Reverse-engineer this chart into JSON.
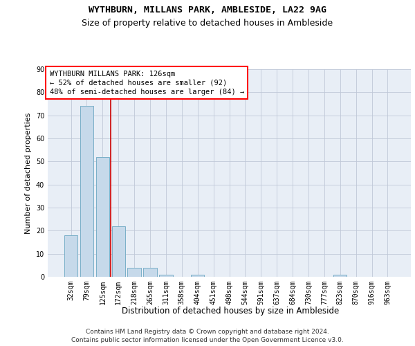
{
  "title1": "WYTHBURN, MILLANS PARK, AMBLESIDE, LA22 9AG",
  "title2": "Size of property relative to detached houses in Ambleside",
  "xlabel": "Distribution of detached houses by size in Ambleside",
  "ylabel": "Number of detached properties",
  "categories": [
    "32sqm",
    "79sqm",
    "125sqm",
    "172sqm",
    "218sqm",
    "265sqm",
    "311sqm",
    "358sqm",
    "404sqm",
    "451sqm",
    "498sqm",
    "544sqm",
    "591sqm",
    "637sqm",
    "684sqm",
    "730sqm",
    "777sqm",
    "823sqm",
    "870sqm",
    "916sqm",
    "963sqm"
  ],
  "values": [
    18,
    74,
    52,
    22,
    4,
    4,
    1,
    0,
    1,
    0,
    0,
    0,
    0,
    0,
    0,
    0,
    0,
    1,
    0,
    0,
    0
  ],
  "bar_color": "#c6d9ea",
  "bar_edge_color": "#7aafc8",
  "red_line_index": 2,
  "annotation_text": "WYTHBURN MILLANS PARK: 126sqm\n← 52% of detached houses are smaller (92)\n48% of semi-detached houses are larger (84) →",
  "annotation_box_color": "white",
  "annotation_box_edge_color": "red",
  "red_line_color": "#cc0000",
  "ylim": [
    0,
    90
  ],
  "yticks": [
    0,
    10,
    20,
    30,
    40,
    50,
    60,
    70,
    80,
    90
  ],
  "grid_color": "#c0c8d8",
  "background_color": "#e8eef6",
  "footer_line1": "Contains HM Land Registry data © Crown copyright and database right 2024.",
  "footer_line2": "Contains public sector information licensed under the Open Government Licence v3.0.",
  "title1_fontsize": 9.5,
  "title2_fontsize": 9,
  "xlabel_fontsize": 8.5,
  "ylabel_fontsize": 8,
  "tick_fontsize": 7,
  "annotation_fontsize": 7.5,
  "footer_fontsize": 6.5
}
